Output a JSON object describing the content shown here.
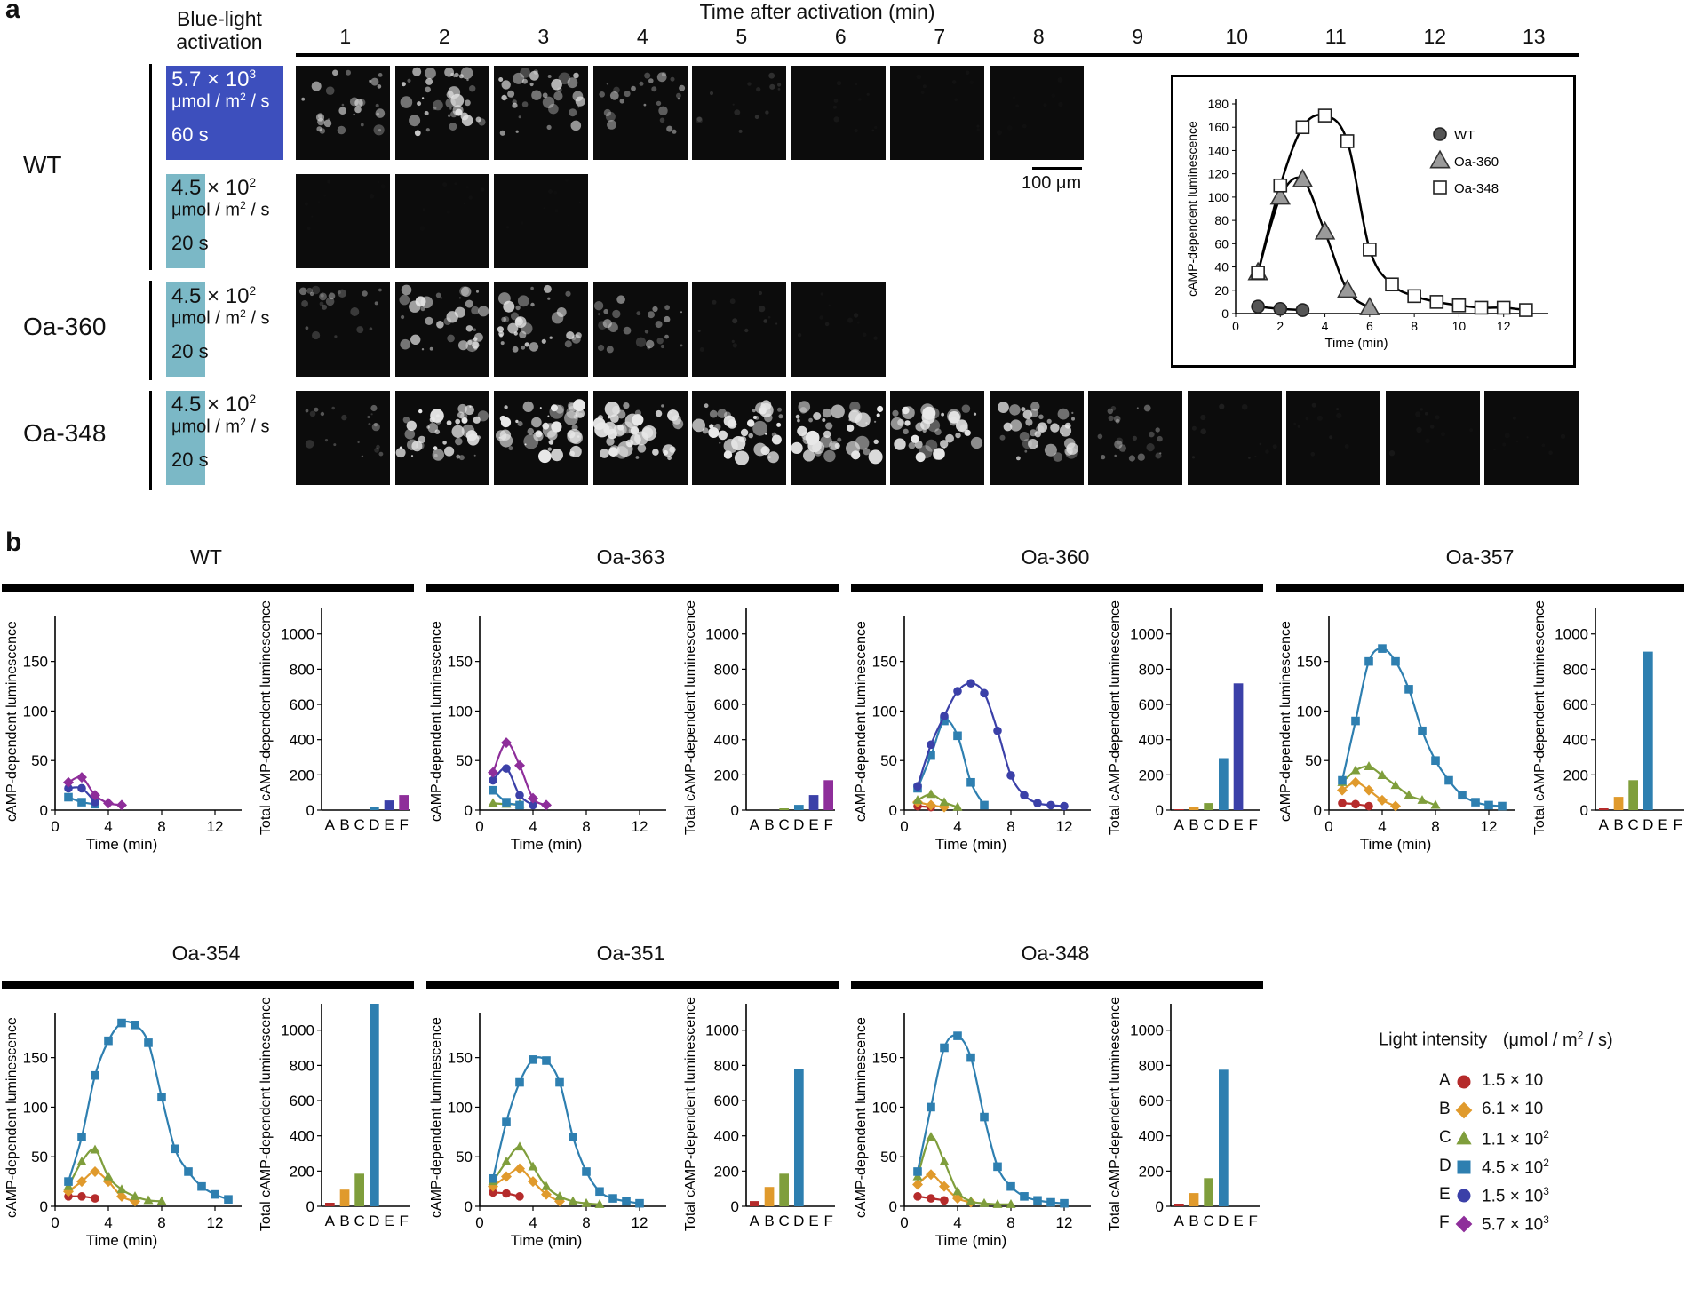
{
  "panel_a": {
    "letter": "a",
    "header_left": "Blue-light activation",
    "header_time": "Time after activation (min)",
    "time_columns": [
      "1",
      "2",
      "3",
      "4",
      "5",
      "6",
      "7",
      "8",
      "9",
      "10",
      "11",
      "12",
      "13"
    ],
    "rows": [
      {
        "label": "WT",
        "light": {
          "intensity": "5.7 × 10",
          "exp": "3",
          "unit": "μmol / m",
          "unit_sup": "2",
          "unit_tail": "/ s",
          "duration": "60 s",
          "color": "#3d4fbd"
        },
        "frames": 8,
        "brightness": [
          0.55,
          0.75,
          0.65,
          0.45,
          0.15,
          0.05,
          0.03,
          0.02
        ]
      },
      {
        "label": "",
        "light": {
          "intensity": "4.5 × 10",
          "exp": "2",
          "unit": "μmol / m",
          "unit_sup": "2",
          "unit_tail": "/ s",
          "duration": "20 s",
          "color": "#7bb8c6"
        },
        "frames": 3,
        "brightness": [
          0.02,
          0.02,
          0.02
        ]
      },
      {
        "label": "Oa-360",
        "light": {
          "intensity": "4.5 × 10",
          "exp": "2",
          "unit": "μmol / m",
          "unit_sup": "2",
          "unit_tail": "/ s",
          "duration": "20 s",
          "color": "#7bb8c6"
        },
        "frames": 6,
        "brightness": [
          0.35,
          0.7,
          0.7,
          0.45,
          0.12,
          0.05
        ]
      },
      {
        "label": "Oa-348",
        "light": {
          "intensity": "4.5 × 10",
          "exp": "2",
          "unit": "μmol / m",
          "unit_sup": "2",
          "unit_tail": "/ s",
          "duration": "20 s",
          "color": "#7bb8c6"
        },
        "frames": 13,
        "brightness": [
          0.3,
          0.85,
          0.95,
          0.95,
          0.9,
          0.9,
          0.85,
          0.7,
          0.35,
          0.08,
          0.05,
          0.04,
          0.03
        ]
      }
    ],
    "scale_bar": "100 μm"
  },
  "panel_b": {
    "letter": "b",
    "legend": {
      "title": "Light intensity",
      "unit": "(μmol / m",
      "unit_sup": "2",
      "unit_tail": "/ s)",
      "items": [
        {
          "key": "A",
          "value": "1.5 × 10",
          "exp": "",
          "color": "#b52b2b",
          "marker": "circle"
        },
        {
          "key": "B",
          "value": "6.1 × 10",
          "exp": "",
          "color": "#e09a2c",
          "marker": "diamond"
        },
        {
          "key": "C",
          "value": "1.1 × 10",
          "exp": "2",
          "color": "#7f9e3c",
          "marker": "triangle"
        },
        {
          "key": "D",
          "value": "4.5 × 10",
          "exp": "2",
          "color": "#2e7fb0",
          "marker": "square"
        },
        {
          "key": "E",
          "value": "1.5 × 10",
          "exp": "3",
          "color": "#3b40a8",
          "marker": "circle"
        },
        {
          "key": "F",
          "value": "5.7 × 10",
          "exp": "3",
          "color": "#8e2e9a",
          "marker": "diamond"
        }
      ]
    }
  },
  "chart_data": [
    {
      "id": "inset",
      "type": "line",
      "title": "",
      "xlabel": "Time (min)",
      "ylabel": "cAMP-dependent luminescence",
      "xlim": [
        0,
        14
      ],
      "ylim": [
        0,
        180
      ],
      "xticks": [
        0,
        2,
        4,
        6,
        8,
        10,
        12
      ],
      "yticks": [
        0,
        20,
        40,
        60,
        80,
        100,
        120,
        140,
        160,
        180
      ],
      "legend": [
        "WT",
        "Oa-360",
        "Oa-348"
      ],
      "series": [
        {
          "name": "WT",
          "marker": "circle",
          "x": [
            1,
            2,
            3
          ],
          "y": [
            6,
            4,
            3
          ]
        },
        {
          "name": "Oa-360",
          "marker": "triangle",
          "x": [
            1,
            2,
            3,
            4,
            5,
            6
          ],
          "y": [
            35,
            100,
            115,
            70,
            20,
            5
          ]
        },
        {
          "name": "Oa-348",
          "marker": "square",
          "x": [
            1,
            2,
            3,
            4,
            5,
            6,
            7,
            8,
            9,
            10,
            11,
            12,
            13
          ],
          "y": [
            35,
            110,
            160,
            170,
            148,
            55,
            25,
            15,
            10,
            7,
            5,
            5,
            3
          ]
        }
      ]
    },
    {
      "id": "wt",
      "title": "WT",
      "type": "line",
      "xlabel": "Time (min)",
      "ylabel": "cAMP-dependent luminescence",
      "xlim": [
        0,
        14
      ],
      "ylim": [
        0,
        190
      ],
      "xticks": [
        0,
        4,
        8,
        12
      ],
      "yticks": [
        0,
        50,
        100,
        150
      ],
      "series": [
        {
          "name": "D",
          "x": [
            1,
            2,
            3
          ],
          "y": [
            13,
            8,
            6
          ]
        },
        {
          "name": "E",
          "x": [
            1,
            2,
            3
          ],
          "y": [
            22,
            22,
            8
          ]
        },
        {
          "name": "F",
          "x": [
            1,
            2,
            3,
            4,
            5
          ],
          "y": [
            28,
            33,
            15,
            7,
            5
          ]
        }
      ],
      "bar": {
        "ylabel": "Total cAMP-dependent luminescence",
        "ylim": [
          0,
          1150
        ],
        "yticks": [
          0,
          200,
          400,
          600,
          800,
          1000
        ],
        "categories": [
          "A",
          "B",
          "C",
          "D",
          "E",
          "F"
        ],
        "values": [
          0,
          0,
          0,
          20,
          55,
          85
        ]
      }
    },
    {
      "id": "oa363",
      "title": "Oa-363",
      "type": "line",
      "xlabel": "Time (min)",
      "ylabel": "cAMP-dependent luminescence",
      "xlim": [
        0,
        14
      ],
      "ylim": [
        0,
        190
      ],
      "xticks": [
        0,
        4,
        8,
        12
      ],
      "yticks": [
        0,
        50,
        100,
        150
      ],
      "series": [
        {
          "name": "C",
          "x": [
            1,
            2,
            3
          ],
          "y": [
            7,
            6,
            6
          ]
        },
        {
          "name": "D",
          "x": [
            1,
            2,
            3
          ],
          "y": [
            20,
            8,
            5
          ]
        },
        {
          "name": "E",
          "x": [
            1,
            2,
            3,
            4
          ],
          "y": [
            30,
            42,
            15,
            5
          ]
        },
        {
          "name": "F",
          "x": [
            1,
            2,
            3,
            4,
            5
          ],
          "y": [
            38,
            68,
            45,
            12,
            5
          ]
        }
      ],
      "bar": {
        "ylabel": "Total cAMP-dependent luminescence",
        "ylim": [
          0,
          1150
        ],
        "yticks": [
          0,
          200,
          400,
          600,
          800,
          1000
        ],
        "categories": [
          "A",
          "B",
          "C",
          "D",
          "E",
          "F"
        ],
        "values": [
          0,
          0,
          10,
          30,
          85,
          170
        ]
      }
    },
    {
      "id": "oa360",
      "title": "Oa-360",
      "type": "line",
      "xlabel": "Time (min)",
      "ylabel": "cAMP-dependent luminescence",
      "xlim": [
        0,
        14
      ],
      "ylim": [
        0,
        190
      ],
      "xticks": [
        0,
        4,
        8,
        12
      ],
      "yticks": [
        0,
        50,
        100,
        150
      ],
      "series": [
        {
          "name": "A",
          "x": [
            1,
            2
          ],
          "y": [
            4,
            3
          ]
        },
        {
          "name": "B",
          "x": [
            1,
            2,
            3
          ],
          "y": [
            8,
            5,
            3
          ]
        },
        {
          "name": "C",
          "x": [
            1,
            2,
            3,
            4
          ],
          "y": [
            10,
            16,
            8,
            3
          ]
        },
        {
          "name": "D",
          "x": [
            1,
            2,
            3,
            4,
            5,
            6
          ],
          "y": [
            22,
            55,
            90,
            75,
            28,
            5
          ]
        },
        {
          "name": "E",
          "x": [
            1,
            2,
            3,
            4,
            5,
            6,
            7,
            8,
            9,
            10,
            11,
            12
          ],
          "y": [
            24,
            66,
            95,
            120,
            128,
            118,
            80,
            35,
            15,
            7,
            5,
            4
          ]
        }
      ],
      "bar": {
        "ylabel": "Total cAMP-dependent luminescence",
        "ylim": [
          0,
          1150
        ],
        "yticks": [
          0,
          200,
          400,
          600,
          800,
          1000
        ],
        "categories": [
          "A",
          "B",
          "C",
          "D",
          "E",
          "F"
        ],
        "values": [
          5,
          15,
          40,
          295,
          720,
          0
        ]
      }
    },
    {
      "id": "oa357",
      "title": "Oa-357",
      "type": "line",
      "xlabel": "Time (min)",
      "ylabel": "cAMP-dependent luminescence",
      "xlim": [
        0,
        14
      ],
      "ylim": [
        0,
        190
      ],
      "xticks": [
        0,
        4,
        8,
        12
      ],
      "yticks": [
        0,
        50,
        100,
        150
      ],
      "series": [
        {
          "name": "A",
          "x": [
            1,
            2,
            3
          ],
          "y": [
            7,
            6,
            4
          ]
        },
        {
          "name": "B",
          "x": [
            1,
            2,
            3,
            4,
            5
          ],
          "y": [
            20,
            28,
            20,
            10,
            4
          ]
        },
        {
          "name": "C",
          "x": [
            1,
            2,
            3,
            4,
            5,
            6,
            7,
            8
          ],
          "y": [
            28,
            40,
            44,
            35,
            25,
            15,
            10,
            5
          ]
        },
        {
          "name": "D",
          "x": [
            1,
            2,
            3,
            4,
            5,
            6,
            7,
            8,
            9,
            10,
            11,
            12,
            13
          ],
          "y": [
            30,
            90,
            150,
            163,
            150,
            122,
            80,
            50,
            30,
            15,
            8,
            5,
            4
          ]
        }
      ],
      "bar": {
        "ylabel": "Total cAMP-dependent luminescence",
        "ylim": [
          0,
          1150
        ],
        "yticks": [
          0,
          200,
          400,
          600,
          800,
          1000
        ],
        "categories": [
          "A",
          "B",
          "C",
          "D",
          "E",
          "F"
        ],
        "values": [
          10,
          75,
          170,
          900,
          0,
          0
        ]
      }
    },
    {
      "id": "oa354",
      "title": "Oa-354",
      "type": "line",
      "xlabel": "Time (min)",
      "ylabel": "cAMP-dependent luminescence",
      "xlim": [
        0,
        14
      ],
      "ylim": [
        0,
        190
      ],
      "xticks": [
        0,
        4,
        8,
        12
      ],
      "yticks": [
        0,
        50,
        100,
        150
      ],
      "series": [
        {
          "name": "A",
          "x": [
            1,
            2,
            3
          ],
          "y": [
            10,
            10,
            8
          ]
        },
        {
          "name": "B",
          "x": [
            1,
            2,
            3,
            4,
            5,
            6
          ],
          "y": [
            15,
            25,
            35,
            25,
            10,
            5
          ]
        },
        {
          "name": "C",
          "x": [
            1,
            2,
            3,
            4,
            5,
            6,
            7,
            8
          ],
          "y": [
            20,
            45,
            57,
            30,
            17,
            10,
            6,
            5
          ]
        },
        {
          "name": "D",
          "x": [
            1,
            2,
            3,
            4,
            5,
            6,
            7,
            8,
            9,
            10,
            11,
            12,
            13
          ],
          "y": [
            25,
            70,
            132,
            167,
            185,
            183,
            165,
            110,
            58,
            35,
            20,
            12,
            7
          ]
        }
      ],
      "bar": {
        "ylabel": "Total cAMP-dependent luminescence",
        "ylim": [
          0,
          1150
        ],
        "yticks": [
          0,
          200,
          400,
          600,
          800,
          1000
        ],
        "categories": [
          "A",
          "B",
          "C",
          "D",
          "E",
          "F"
        ],
        "values": [
          20,
          95,
          185,
          1150,
          0,
          0
        ]
      }
    },
    {
      "id": "oa351",
      "title": "Oa-351",
      "type": "line",
      "xlabel": "Time (min)",
      "ylabel": "cAMP-dependent luminescence",
      "xlim": [
        0,
        14
      ],
      "ylim": [
        0,
        190
      ],
      "xticks": [
        0,
        4,
        8,
        12
      ],
      "yticks": [
        0,
        50,
        100,
        150
      ],
      "series": [
        {
          "name": "A",
          "x": [
            1,
            2,
            3
          ],
          "y": [
            14,
            13,
            10
          ]
        },
        {
          "name": "B",
          "x": [
            1,
            2,
            3,
            4,
            5,
            6
          ],
          "y": [
            20,
            30,
            38,
            25,
            12,
            5
          ]
        },
        {
          "name": "C",
          "x": [
            1,
            2,
            3,
            4,
            5,
            6,
            7,
            8,
            9
          ],
          "y": [
            25,
            45,
            60,
            40,
            20,
            10,
            5,
            3,
            2
          ]
        },
        {
          "name": "D",
          "x": [
            1,
            2,
            3,
            4,
            5,
            6,
            7,
            8,
            9,
            10,
            11,
            12
          ],
          "y": [
            28,
            85,
            125,
            148,
            147,
            125,
            70,
            35,
            15,
            8,
            5,
            3
          ]
        }
      ],
      "bar": {
        "ylabel": "Total cAMP-dependent luminescence",
        "ylim": [
          0,
          1150
        ],
        "yticks": [
          0,
          200,
          400,
          600,
          800,
          1000
        ],
        "categories": [
          "A",
          "B",
          "C",
          "D",
          "E",
          "F"
        ],
        "values": [
          30,
          110,
          185,
          780,
          0,
          0
        ]
      }
    },
    {
      "id": "oa348",
      "title": "Oa-348",
      "type": "line",
      "xlabel": "Time (min)",
      "ylabel": "cAMP-dependent luminescence",
      "xlim": [
        0,
        14
      ],
      "ylim": [
        0,
        190
      ],
      "xticks": [
        0,
        4,
        8,
        12
      ],
      "yticks": [
        0,
        50,
        100,
        150
      ],
      "series": [
        {
          "name": "A",
          "x": [
            1,
            2,
            3
          ],
          "y": [
            10,
            8,
            6
          ]
        },
        {
          "name": "B",
          "x": [
            1,
            2,
            3,
            4,
            5
          ],
          "y": [
            22,
            32,
            20,
            8,
            4
          ]
        },
        {
          "name": "C",
          "x": [
            1,
            2,
            3,
            4,
            5,
            6,
            7,
            8
          ],
          "y": [
            30,
            70,
            45,
            15,
            5,
            3,
            2,
            2
          ]
        },
        {
          "name": "D",
          "x": [
            1,
            2,
            3,
            4,
            5,
            6,
            7,
            8,
            9,
            10,
            11,
            12
          ],
          "y": [
            35,
            100,
            160,
            172,
            150,
            90,
            40,
            20,
            10,
            6,
            4,
            3
          ]
        }
      ],
      "bar": {
        "ylabel": "Total cAMP-dependent luminescence",
        "ylim": [
          0,
          1150
        ],
        "yticks": [
          0,
          200,
          400,
          600,
          800,
          1000
        ],
        "categories": [
          "A",
          "B",
          "C",
          "D",
          "E",
          "F"
        ],
        "values": [
          15,
          75,
          160,
          775,
          0,
          0
        ]
      }
    }
  ]
}
